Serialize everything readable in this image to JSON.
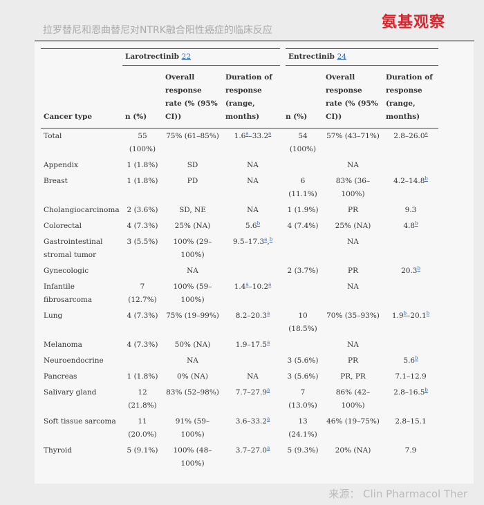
{
  "header": {
    "title": "拉罗替尼和恩曲替尼对NTRK融合阳性癌症的临床反应",
    "logo": "氨基观察"
  },
  "table": {
    "groups": [
      {
        "name": "Larotrectinib",
        "ref": "22"
      },
      {
        "name": "Entrectinib",
        "ref": "24"
      }
    ],
    "columns": [
      "Cancer type",
      "n (%)",
      "Overall response rate (% (95% CI))",
      "Duration of response (range, months)",
      "n (%)",
      "Overall response rate (% (95% CI))",
      "Duration of response (range, months)"
    ],
    "rows": [
      [
        "Total",
        "55 (100%)",
        "75% (61–85%)",
        [
          {
            "text": "1.6",
            "sup": "a"
          },
          {
            "text": "–33.2",
            "sup": "a"
          }
        ],
        "54 (100%)",
        "57% (43–71%)",
        [
          {
            "text": "2.8–26.0",
            "sup": "a"
          }
        ]
      ],
      [
        "Appendix",
        "1 (1.8%)",
        "SD",
        "NA",
        null,
        "NA",
        null
      ],
      [
        "Breast",
        "1 (1.8%)",
        "PD",
        "NA",
        "6 (11.1%)",
        "83% (36–100%)",
        [
          {
            "text": "4.2–14.8",
            "sup": "b"
          }
        ]
      ],
      [
        "Cholangiocarcinoma",
        "2 (3.6%)",
        "SD, NE",
        "NA",
        "1 (1.9%)",
        "PR",
        "9.3"
      ],
      [
        "Colorectal",
        "4 (7.3%)",
        "25% (NA)",
        [
          {
            "text": "5.6",
            "sup": "b"
          }
        ],
        "4 (7.4%)",
        "25% (NA)",
        [
          {
            "text": "4.8",
            "sup": "b"
          }
        ]
      ],
      [
        "Gastrointestinal stromal tumor",
        "3 (5.5%)",
        "100% (29–100%)",
        [
          {
            "text": "9.5–17.3",
            "sup": "a"
          },
          {
            "text": ",",
            "sup": "b"
          }
        ],
        null,
        "NA",
        null
      ],
      [
        "Gynecologic",
        null,
        "NA",
        null,
        "2 (3.7%)",
        "PR",
        [
          {
            "text": "20.3",
            "sup": "b"
          }
        ]
      ],
      [
        "Infantile fibrosarcoma",
        "7 (12.7%)",
        "100% (59–100%)",
        [
          {
            "text": "1.4",
            "sup": "a"
          },
          {
            "text": "–10.2",
            "sup": "a"
          }
        ],
        null,
        "NA",
        null
      ],
      [
        "Lung",
        "4 (7.3%)",
        "75% (19–99%)",
        [
          {
            "text": "8.2–20.3",
            "sup": "a"
          }
        ],
        "10 (18.5%)",
        "70% (35–93%)",
        [
          {
            "text": "1.9",
            "sup": "b"
          },
          {
            "text": "–20.1",
            "sup": "b"
          }
        ]
      ],
      [
        "Melanoma",
        "4 (7.3%)",
        "50% (NA)",
        [
          {
            "text": "1.9–17.5",
            "sup": "a"
          }
        ],
        null,
        "NA",
        null
      ],
      [
        "Neuroendocrine",
        null,
        "NA",
        null,
        "3 (5.6%)",
        "PR",
        [
          {
            "text": "5.6",
            "sup": "b"
          }
        ]
      ],
      [
        "Pancreas",
        "1 (1.8%)",
        "0% (NA)",
        "NA",
        "3 (5.6%)",
        "PR, PR",
        "7.1–12.9"
      ],
      [
        "Salivary gland",
        "12 (21.8%)",
        "83% (52–98%)",
        [
          {
            "text": "7.7–27.9",
            "sup": "a"
          }
        ],
        "7 (13.0%)",
        "86% (42–100%)",
        [
          {
            "text": "2.8–16.5",
            "sup": "b"
          }
        ]
      ],
      [
        "Soft tissue sarcoma",
        "11 (20.0%)",
        "91% (59–100%)",
        [
          {
            "text": "3.6–33.2",
            "sup": "a"
          }
        ],
        "13 (24.1%)",
        "46% (19–75%)",
        "2.8–15.1"
      ],
      [
        "Thyroid",
        "5 (9.1%)",
        "100% (48–100%)",
        [
          {
            "text": "3.7–27.0",
            "sup": "a"
          }
        ],
        "5 (9.3%)",
        "20% (NA)",
        "7.9"
      ]
    ]
  },
  "footer": {
    "source": "来源：  Clin Pharmacol Ther"
  }
}
